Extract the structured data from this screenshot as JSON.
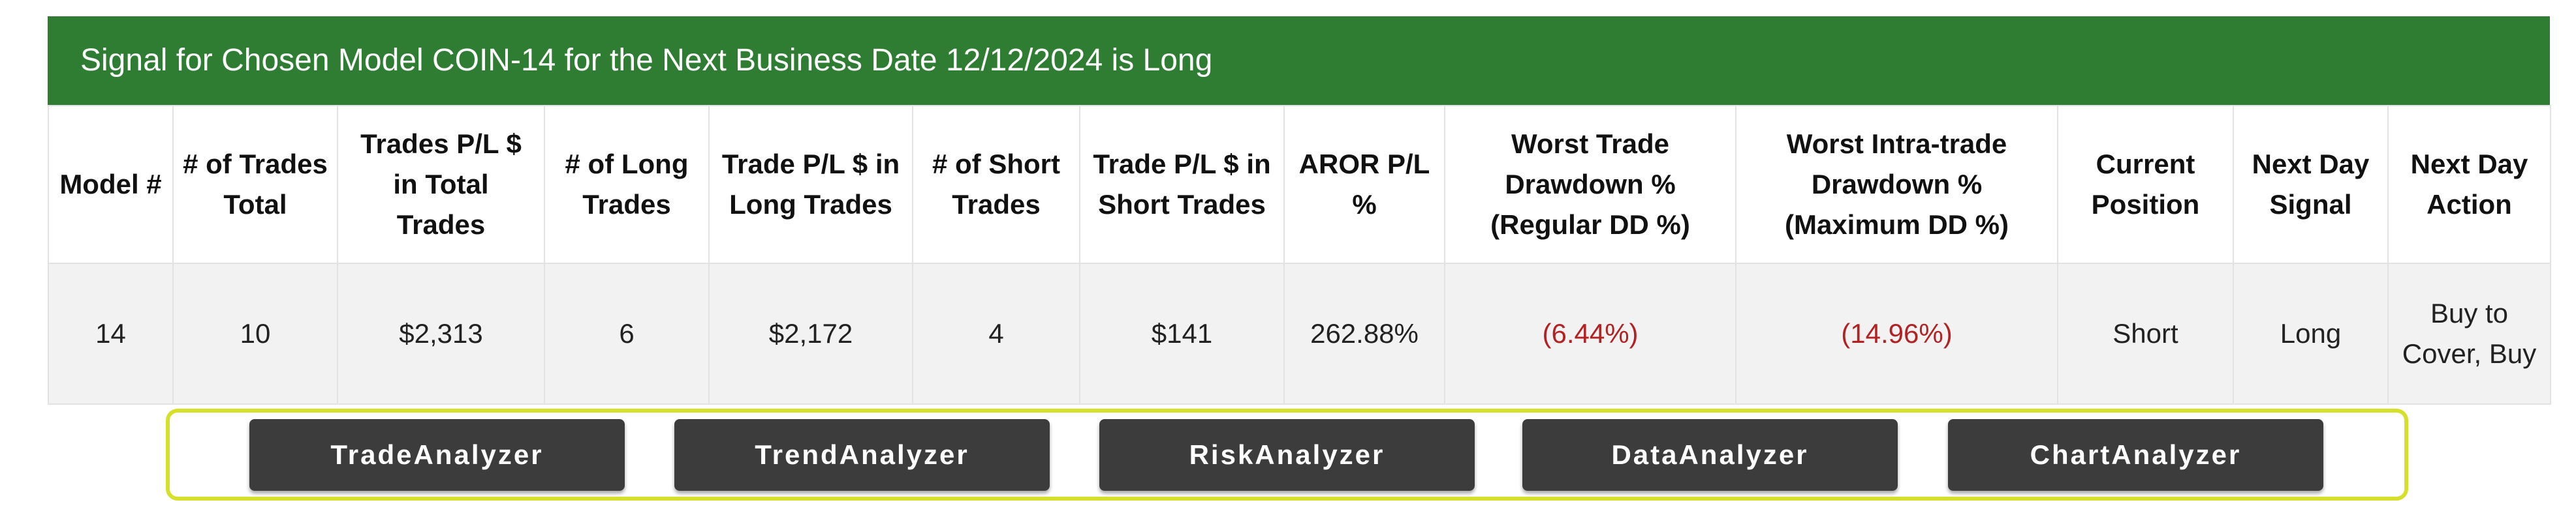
{
  "title": "Signal for Chosen Model COIN-14 for the Next Business Date 12/12/2024 is Long",
  "table": {
    "headers": [
      "Model #",
      "# of Trades Total",
      "Trades P/L $ in Total Trades",
      "# of Long Trades",
      "Trade P/L $ in Long Trades",
      "# of Short Trades",
      "Trade P/L $ in Short Trades",
      "AROR P/L %",
      "Worst Trade Drawdown % (Regular DD %)",
      "Worst Intra-trade Drawdown % (Maximum DD %)",
      "Current Position",
      "Next Day Signal",
      "Next Day Action"
    ],
    "rows": [
      [
        "14",
        "10",
        "$2,313",
        "6",
        "$2,172",
        "4",
        "$141",
        "262.88%",
        "(6.44%)",
        "(14.96%)",
        "Short",
        "Long",
        "Buy to Cover, Buy"
      ]
    ]
  },
  "buttons": [
    "TradeAnalyzer",
    "TrendAnalyzer",
    "RiskAnalyzer",
    "DataAnalyzer",
    "ChartAnalyzer"
  ]
}
